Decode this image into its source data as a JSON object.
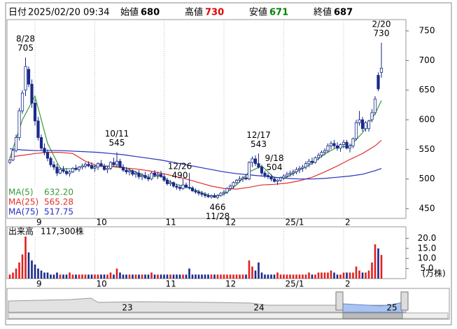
{
  "header": {
    "date_label": "日付",
    "date": "2025/02/20 09:34",
    "fields": [
      {
        "label": "始値",
        "value": 680,
        "color": "#000000"
      },
      {
        "label": "高値",
        "value": 730,
        "color": "#e00000"
      },
      {
        "label": "安値",
        "value": 671,
        "color": "#008000"
      },
      {
        "label": "終値",
        "value": 687,
        "color": "#000000"
      }
    ]
  },
  "chart_data": {
    "type": "candlestick",
    "categories": [
      null,
      null,
      null,
      null,
      null,
      null,
      null,
      null,
      "9",
      null,
      null,
      null,
      null,
      null,
      null,
      null,
      null,
      null,
      null,
      null,
      null,
      null,
      null,
      null,
      null,
      null,
      null,
      "10",
      null,
      null,
      null,
      null,
      null,
      null,
      null,
      null,
      null,
      null,
      null,
      null,
      null,
      null,
      null,
      null,
      null,
      null,
      null,
      null,
      null,
      "11",
      null,
      null,
      null,
      null,
      null,
      null,
      null,
      null,
      null,
      null,
      null,
      null,
      null,
      null,
      null,
      null,
      null,
      null,
      "12",
      null,
      null,
      null,
      null,
      null,
      null,
      null,
      null,
      null,
      null,
      null,
      null,
      null,
      null,
      null,
      null,
      null,
      null,
      "25/1",
      null,
      null,
      null,
      null,
      null,
      null,
      null,
      null,
      null,
      null,
      null,
      null,
      null,
      null,
      null,
      null,
      null,
      null,
      "2",
      null,
      null,
      null,
      null,
      null,
      null,
      null,
      null,
      null,
      null,
      null,
      null
    ],
    "ohlc": [
      [
        528,
        535,
        525,
        532
      ],
      [
        532,
        550,
        530,
        548
      ],
      [
        548,
        575,
        545,
        570
      ],
      [
        570,
        620,
        565,
        615
      ],
      [
        615,
        650,
        610,
        645
      ],
      [
        650,
        705,
        640,
        690
      ],
      [
        685,
        690,
        655,
        660
      ],
      [
        660,
        668,
        620,
        628
      ],
      [
        628,
        635,
        590,
        598
      ],
      [
        598,
        605,
        565,
        570
      ],
      [
        570,
        575,
        548,
        552
      ],
      [
        552,
        560,
        540,
        545
      ],
      [
        545,
        550,
        530,
        535
      ],
      [
        535,
        538,
        520,
        524
      ],
      [
        524,
        530,
        515,
        520
      ],
      [
        520,
        526,
        505,
        510
      ],
      [
        510,
        520,
        508,
        516
      ],
      [
        516,
        522,
        510,
        513
      ],
      [
        513,
        518,
        506,
        509
      ],
      [
        509,
        515,
        504,
        512
      ],
      [
        512,
        520,
        510,
        518
      ],
      [
        518,
        524,
        514,
        516
      ],
      [
        516,
        522,
        512,
        520
      ],
      [
        520,
        526,
        516,
        522
      ],
      [
        522,
        528,
        518,
        525
      ],
      [
        525,
        530,
        520,
        523
      ],
      [
        523,
        528,
        516,
        518
      ],
      [
        518,
        524,
        512,
        520
      ],
      [
        520,
        528,
        515,
        526
      ],
      [
        526,
        532,
        520,
        522
      ],
      [
        522,
        526,
        514,
        516
      ],
      [
        516,
        522,
        510,
        518
      ],
      [
        518,
        530,
        515,
        528
      ],
      [
        528,
        536,
        522,
        524
      ],
      [
        524,
        545,
        520,
        530
      ],
      [
        530,
        534,
        518,
        520
      ],
      [
        520,
        525,
        512,
        515
      ],
      [
        515,
        520,
        508,
        512
      ],
      [
        512,
        518,
        506,
        514
      ],
      [
        514,
        516,
        505,
        508
      ],
      [
        508,
        514,
        502,
        510
      ],
      [
        510,
        515,
        500,
        504
      ],
      [
        504,
        510,
        498,
        506
      ],
      [
        506,
        512,
        500,
        502
      ],
      [
        502,
        508,
        496,
        500
      ],
      [
        500,
        512,
        498,
        510
      ],
      [
        510,
        515,
        503,
        506
      ],
      [
        506,
        512,
        500,
        508
      ],
      [
        508,
        514,
        502,
        504
      ],
      [
        504,
        508,
        495,
        498
      ],
      [
        498,
        502,
        489,
        492
      ],
      [
        492,
        498,
        488,
        494
      ],
      [
        494,
        496,
        485,
        488
      ],
      [
        488,
        492,
        482,
        486
      ],
      [
        486,
        490,
        480,
        484
      ],
      [
        484,
        500,
        482,
        490
      ],
      [
        490,
        494,
        484,
        486
      ],
      [
        486,
        510,
        482,
        485
      ],
      [
        485,
        488,
        478,
        480
      ],
      [
        480,
        484,
        475,
        478
      ],
      [
        478,
        482,
        472,
        476
      ],
      [
        476,
        480,
        470,
        474
      ],
      [
        474,
        478,
        468,
        472
      ],
      [
        472,
        476,
        468,
        470
      ],
      [
        470,
        474,
        467,
        472
      ],
      [
        472,
        476,
        468,
        469
      ],
      [
        469,
        474,
        466,
        472
      ],
      [
        472,
        478,
        470,
        476
      ],
      [
        476,
        482,
        472,
        478
      ],
      [
        478,
        486,
        475,
        484
      ],
      [
        484,
        491,
        480,
        488
      ],
      [
        488,
        496,
        484,
        494
      ],
      [
        494,
        500,
        491,
        498
      ],
      [
        498,
        505,
        494,
        500
      ],
      [
        500,
        505,
        495,
        502
      ],
      [
        502,
        506,
        498,
        500
      ],
      [
        500,
        530,
        498,
        528
      ],
      [
        528,
        538,
        520,
        534
      ],
      [
        534,
        540,
        522,
        526
      ],
      [
        526,
        543,
        518,
        520
      ],
      [
        520,
        524,
        506,
        510
      ],
      [
        510,
        514,
        502,
        506
      ],
      [
        506,
        510,
        500,
        504
      ],
      [
        504,
        508,
        496,
        500
      ],
      [
        500,
        504,
        494,
        496
      ],
      [
        496,
        500,
        490,
        498
      ],
      [
        498,
        504,
        495,
        502
      ],
      [
        502,
        508,
        498,
        505
      ],
      [
        505,
        512,
        502,
        508
      ],
      [
        508,
        514,
        504,
        510
      ],
      [
        510,
        516,
        505,
        512
      ],
      [
        512,
        520,
        508,
        516
      ],
      [
        516,
        522,
        510,
        518
      ],
      [
        518,
        524,
        512,
        520
      ],
      [
        520,
        530,
        516,
        526
      ],
      [
        526,
        534,
        520,
        530
      ],
      [
        530,
        536,
        524,
        528
      ],
      [
        528,
        538,
        526,
        536
      ],
      [
        536,
        544,
        532,
        540
      ],
      [
        540,
        548,
        536,
        545
      ],
      [
        545,
        552,
        540,
        548
      ],
      [
        548,
        560,
        544,
        556
      ],
      [
        556,
        564,
        550,
        560
      ],
      [
        560,
        566,
        552,
        556
      ],
      [
        556,
        562,
        548,
        552
      ],
      [
        552,
        560,
        546,
        558
      ],
      [
        558,
        566,
        552,
        562
      ],
      [
        562,
        566,
        550,
        552
      ],
      [
        552,
        560,
        545,
        556
      ],
      [
        556,
        570,
        552,
        568
      ],
      [
        568,
        600,
        565,
        595
      ],
      [
        595,
        615,
        590,
        600
      ],
      [
        600,
        605,
        580,
        585
      ],
      [
        585,
        598,
        580,
        595
      ],
      [
        585,
        600,
        580,
        598
      ],
      [
        600,
        618,
        596,
        612
      ],
      [
        612,
        640,
        608,
        635
      ],
      [
        675,
        680,
        648,
        652
      ],
      [
        680,
        730,
        671,
        687
      ]
    ],
    "up_color": "#ffffff",
    "down_color": "#1a2a8a",
    "ylim": [
      433.5,
      769
    ],
    "yticks": [
      450,
      500,
      550,
      600,
      650,
      700,
      750
    ],
    "grid": true,
    "annotations": [
      {
        "date": "8/28",
        "value": 705
      },
      {
        "date": "10/11",
        "value": 545
      },
      {
        "date": "12/17",
        "value": 543
      },
      {
        "date": "2/20",
        "value": 730
      },
      {
        "date": "9/18",
        "value": 504
      },
      {
        "date": "11/28",
        "value": 466
      },
      {
        "date": "12/26",
        "value": 490
      }
    ],
    "ma_x": [
      0,
      4,
      8,
      12,
      16,
      20,
      24,
      28,
      32,
      36,
      40,
      44,
      48,
      52,
      56,
      60,
      64,
      68,
      72,
      76,
      80,
      84,
      88,
      92,
      96,
      100,
      104,
      108,
      112,
      116,
      118
    ],
    "ma_series": [
      {
        "name": "MA(5)",
        "color": "#3a9a3a",
        "latest": {
          "value": 632.2,
          "label": "632.20"
        },
        "values": [
          535,
          600,
          640,
          560,
          518,
          517,
          522,
          522,
          522,
          520,
          512,
          503,
          505,
          492,
          487,
          479,
          471,
          474,
          490,
          512,
          522,
          502,
          503,
          515,
          526,
          542,
          554,
          555,
          578,
          610,
          632.2
        ]
      },
      {
        "name": "MA(25)",
        "color": "#e03030",
        "latest": {
          "value": 565.28,
          "label": "565.28"
        },
        "values": [
          537,
          540,
          543,
          545,
          545,
          543,
          530,
          522,
          521,
          519,
          517,
          514,
          510,
          505,
          500,
          494,
          488,
          484,
          483,
          486,
          490,
          491,
          493,
          497,
          503,
          512,
          522,
          533,
          543,
          556,
          565.28
        ]
      },
      {
        "name": "MA(75)",
        "color": "#2030c0",
        "latest": {
          "value": 517.75,
          "label": "517.75"
        },
        "values": [
          551,
          549,
          548,
          548,
          548,
          547,
          546,
          545,
          543,
          541,
          538,
          535,
          532,
          528,
          524,
          520,
          516,
          512,
          509,
          507,
          505,
          503,
          501,
          500,
          500,
          501,
          503,
          505,
          508,
          514,
          517.75
        ]
      }
    ],
    "volume": {
      "label": "出来高",
      "latest_label": "117,300株",
      "unit": "(万株)",
      "up_color": "#e02020",
      "down_color": "#1a2a8a",
      "ylim": [
        0,
        25.7
      ],
      "yticks": [
        {
          "value": 5,
          "label": "5.0"
        },
        {
          "value": 10,
          "label": "10.0"
        },
        {
          "value": 15,
          "label": "15.0"
        },
        {
          "value": 20,
          "label": "20.0"
        }
      ],
      "values": [
        2,
        3,
        5,
        8,
        12,
        21,
        13,
        9,
        7,
        5,
        4,
        3,
        3,
        2,
        2,
        3,
        2,
        2,
        2,
        3,
        2,
        2,
        2,
        2,
        2,
        2,
        2,
        2,
        2,
        2,
        2,
        2,
        3,
        2,
        5,
        3,
        2,
        2,
        2,
        2,
        2,
        2,
        2,
        2,
        2,
        3,
        2,
        2,
        2,
        2,
        2,
        2,
        2,
        2,
        2,
        2,
        2,
        5,
        2,
        2,
        2,
        2,
        2,
        2,
        2,
        2,
        2,
        2,
        2,
        2,
        2,
        2,
        2,
        2,
        2,
        2,
        9,
        6,
        4,
        8,
        3,
        2,
        2,
        2,
        2,
        3,
        2,
        2,
        2,
        2,
        2,
        2,
        2,
        2,
        2,
        3,
        2,
        2,
        3,
        3,
        3,
        3,
        4,
        3,
        2,
        2,
        3,
        3,
        3,
        3,
        6,
        4,
        3,
        3,
        4,
        8,
        17,
        15,
        11.73
      ]
    }
  },
  "navigator": {
    "labels": [
      "23",
      "24",
      "25"
    ]
  }
}
